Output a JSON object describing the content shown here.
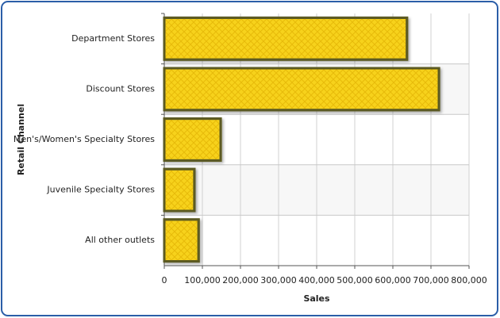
{
  "chart_data": {
    "type": "bar",
    "orientation": "horizontal",
    "x_label": "Sales",
    "y_label": "Retail Channel",
    "categories": [
      "Department Stores",
      "Discount Stores",
      "Men's/Women's Specialty Stores",
      "Juvenile Specialty Stores",
      "All other outlets"
    ],
    "values": [
      637000,
      721000,
      148000,
      79000,
      90000
    ],
    "color": "#f7d21a",
    "edge_color": "#5c5a20",
    "xlim": [
      0,
      800000
    ],
    "xticks": [
      0,
      {
        "value": 100000,
        "label": "100,000"
      },
      {
        "value": 200000,
        "label": "200,000"
      },
      {
        "value": 300000,
        "label": "300,000"
      },
      {
        "value": 400000,
        "label": "400,000"
      },
      {
        "value": 500000,
        "label": "500,000"
      },
      {
        "value": 600000,
        "label": "600,000"
      },
      {
        "value": 700000,
        "label": "700,000"
      },
      {
        "value": 800000,
        "label": "800,000"
      }
    ],
    "grid": true
  }
}
